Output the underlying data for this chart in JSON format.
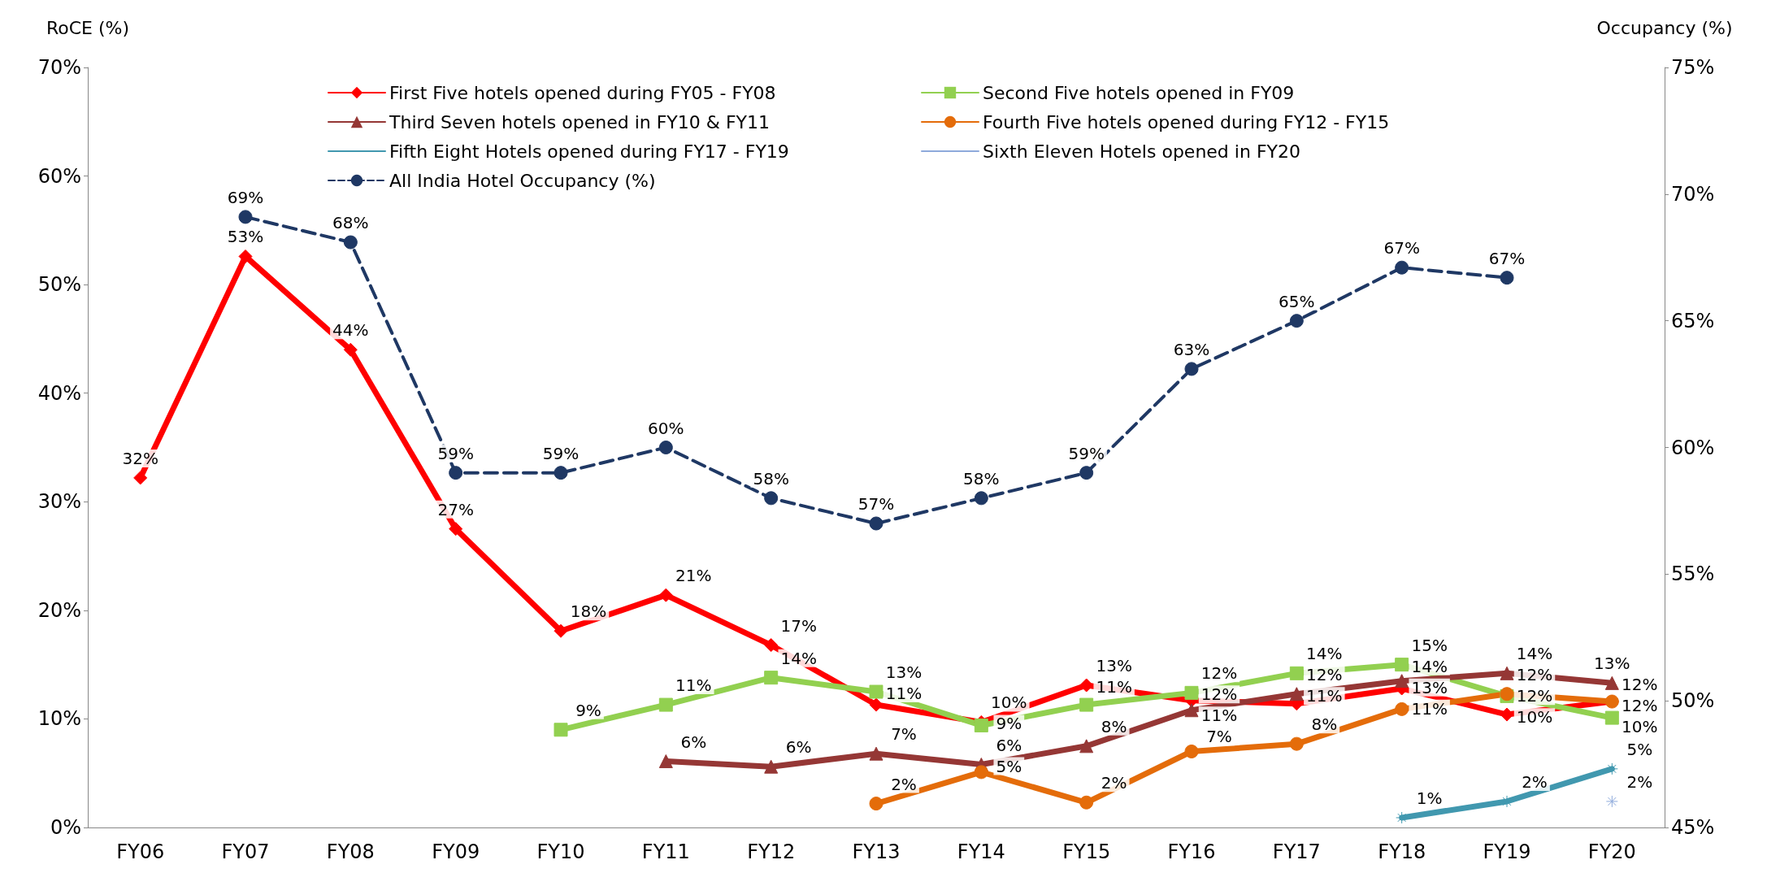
{
  "chart_data": {
    "type": "line",
    "categories": [
      "FY06",
      "FY07",
      "FY08",
      "FY09",
      "FY10",
      "FY11",
      "FY12",
      "FY13",
      "FY14",
      "FY15",
      "FY16",
      "FY17",
      "FY18",
      "FY19",
      "FY20"
    ],
    "ylabel": "RoCE (%)",
    "y2label": "Occupancy (%)",
    "ylim": [
      0,
      70
    ],
    "yticks": [
      {
        "value": 0,
        "label": "0%"
      },
      {
        "value": 10,
        "label": "10%"
      },
      {
        "value": 20,
        "label": "20%"
      },
      {
        "value": 30,
        "label": "30%"
      },
      {
        "value": 40,
        "label": "40%"
      },
      {
        "value": 50,
        "label": "50%"
      },
      {
        "value": 60,
        "label": "60%"
      },
      {
        "value": 70,
        "label": "70%"
      }
    ],
    "y2lim": [
      45,
      75
    ],
    "y2ticks": [
      {
        "value": 45,
        "label": "45%"
      },
      {
        "value": 50,
        "label": "50%"
      },
      {
        "value": 55,
        "label": "55%"
      },
      {
        "value": 60,
        "label": "60%"
      },
      {
        "value": 65,
        "label": "65%"
      },
      {
        "value": 70,
        "label": "70%"
      },
      {
        "value": 75,
        "label": "75%"
      }
    ],
    "grid": false,
    "legend": "top",
    "series": [
      {
        "name": "First Five hotels opened during FY05 - FY08",
        "color": "#ff0000",
        "marker": "diamond",
        "values": [
          32.2,
          52.6,
          44.0,
          27.5,
          18.1,
          21.4,
          16.8,
          11.3,
          9.7,
          13.1,
          11.7,
          11.4,
          12.8,
          10.4,
          11.6
        ],
        "value_labels": [
          "32%",
          "53%",
          "44%",
          "27%",
          "18%",
          "21%",
          "17%",
          "11%",
          "10%",
          "13%",
          "12%",
          "11%",
          "13%",
          "10%",
          "12%"
        ]
      },
      {
        "name": "Second Five hotels opened in FY09",
        "color": "#92d050",
        "marker": "square",
        "values": [
          null,
          null,
          null,
          null,
          9.0,
          11.3,
          13.8,
          12.5,
          9.4,
          11.3,
          12.4,
          14.2,
          15.0,
          12.1,
          10.1
        ],
        "value_labels": [
          null,
          null,
          null,
          null,
          "9%",
          "11%",
          "14%",
          "13%",
          "9%",
          "11%",
          "12%",
          "14%",
          "15%",
          "12%",
          "10%"
        ]
      },
      {
        "name": "Third Seven hotels opened in FY10 & FY11",
        "color": "#953735",
        "marker": "triangle",
        "values": [
          null,
          null,
          null,
          null,
          null,
          6.1,
          5.6,
          6.8,
          5.8,
          7.5,
          10.8,
          12.3,
          13.5,
          14.2,
          13.3
        ],
        "value_labels": [
          null,
          null,
          null,
          null,
          null,
          "6%",
          "6%",
          "7%",
          "6%",
          "8%",
          "11%",
          "12%",
          "14%",
          "14%",
          "13%"
        ]
      },
      {
        "name": "Fourth Five hotels opened during FY12 - FY15",
        "color": "#e46c0a",
        "marker": "circle",
        "values": [
          null,
          null,
          null,
          null,
          null,
          null,
          null,
          2.2,
          5.1,
          2.3,
          7.0,
          7.7,
          10.9,
          12.3,
          11.6
        ],
        "value_labels": [
          null,
          null,
          null,
          null,
          null,
          null,
          null,
          "2%",
          "5%",
          "2%",
          "7%",
          "8%",
          "11%",
          "12%",
          "12%"
        ]
      },
      {
        "name": "Fifth Eight Hotels opened during FY17 - FY19",
        "color": "#4198af",
        "marker": "cross",
        "values": [
          null,
          null,
          null,
          null,
          null,
          null,
          null,
          null,
          null,
          null,
          null,
          null,
          0.9,
          2.4,
          5.4
        ],
        "value_labels": [
          null,
          null,
          null,
          null,
          null,
          null,
          null,
          null,
          null,
          null,
          null,
          null,
          "1%",
          "2%",
          "5%"
        ]
      },
      {
        "name": "Sixth Eleven Hotels opened in FY20",
        "color": "#8eaadb",
        "marker": "cross",
        "values": [
          null,
          null,
          null,
          null,
          null,
          null,
          null,
          null,
          null,
          null,
          null,
          null,
          null,
          null,
          2.4
        ],
        "value_labels": [
          null,
          null,
          null,
          null,
          null,
          null,
          null,
          null,
          null,
          null,
          null,
          null,
          null,
          null,
          "2%"
        ]
      },
      {
        "name": "All India Hotel Occupancy (%)",
        "color": "#1f3864",
        "marker": "circle",
        "line_style": "dashed",
        "axis": "y2",
        "values": [
          null,
          69.1,
          68.1,
          59.0,
          59.0,
          60.0,
          58.0,
          57.0,
          58.0,
          59.0,
          63.1,
          65.0,
          67.1,
          66.7,
          null
        ],
        "value_labels": [
          null,
          "69%",
          "68%",
          "59%",
          "59%",
          "60%",
          "58%",
          "57%",
          "58%",
          "59%",
          "63%",
          "65%",
          "67%",
          "67%",
          null
        ]
      }
    ]
  }
}
